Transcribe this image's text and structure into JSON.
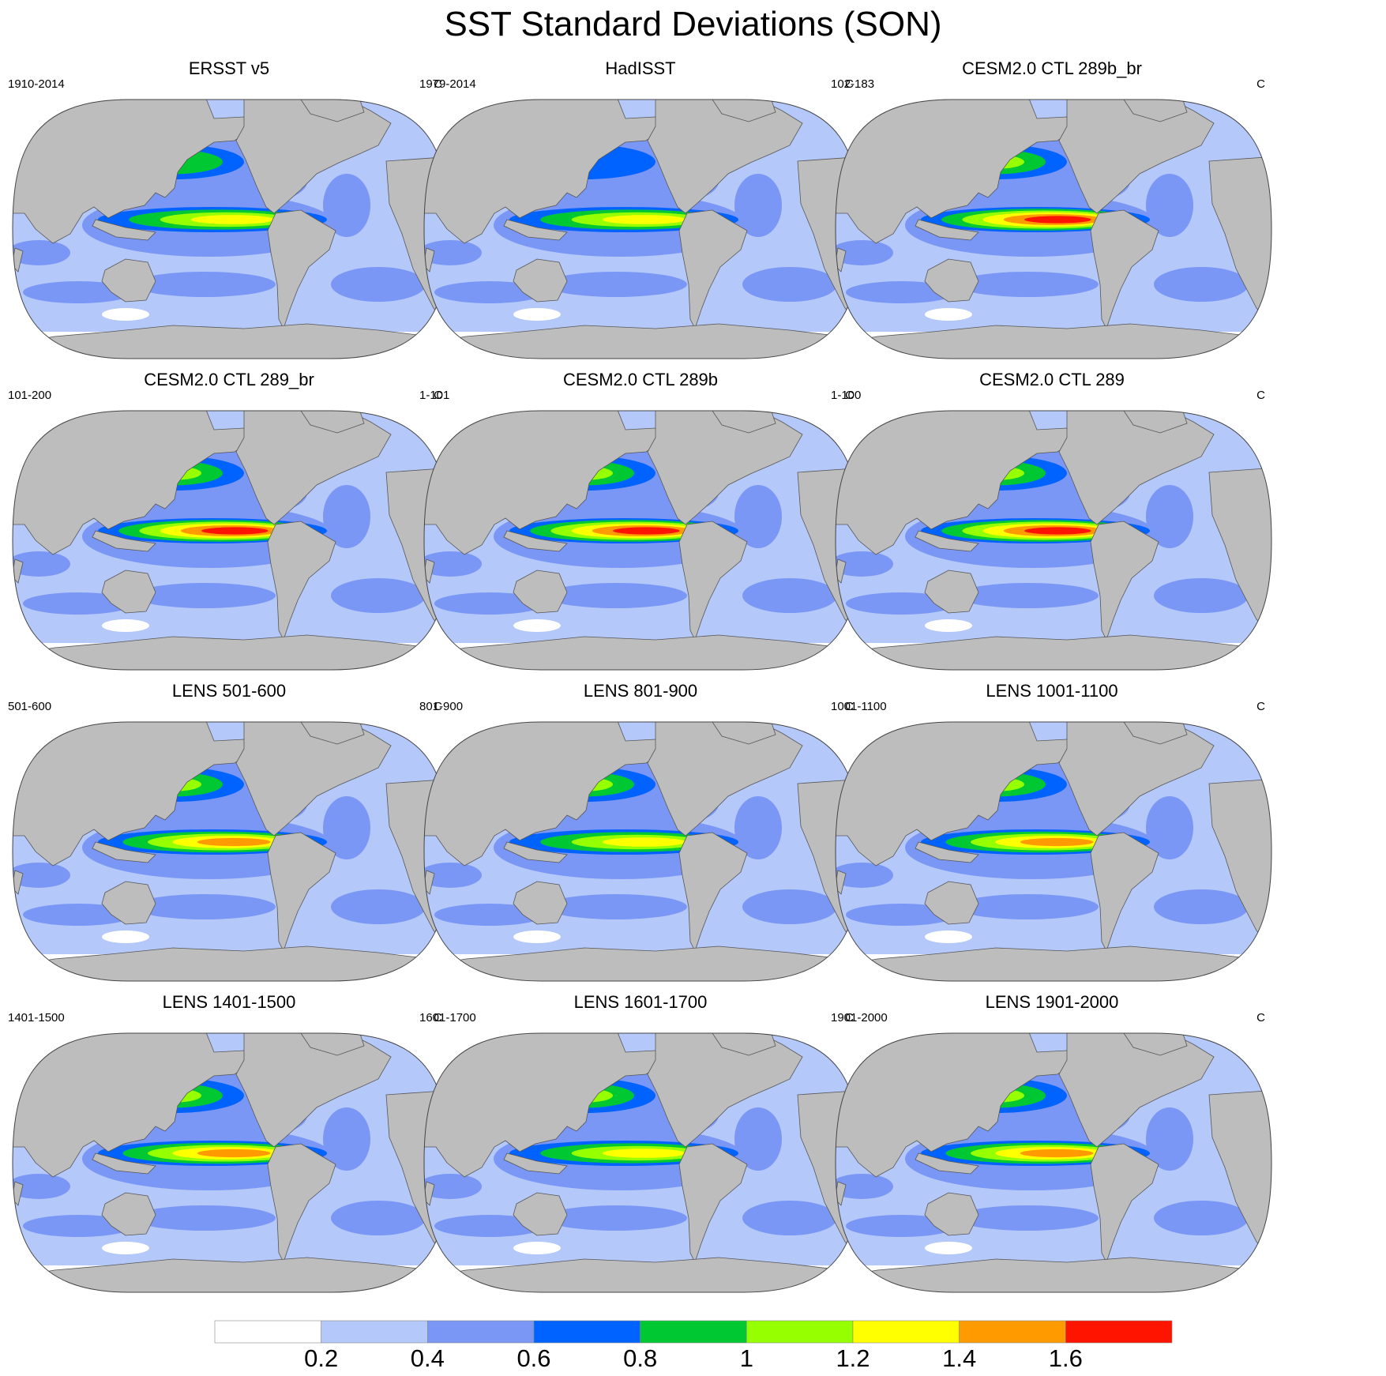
{
  "title": "SST Standard Deviations (SON)",
  "units": "C",
  "colors": {
    "land": "#bdbdbd",
    "outline": "#555555",
    "levels": [
      "#ffffff",
      "#b4c8fa",
      "#7b97f5",
      "#0063ff",
      "#00c832",
      "#96ff00",
      "#ffff00",
      "#ff9b00",
      "#ff1400"
    ]
  },
  "colorbar": {
    "tick_labels": [
      "0.2",
      "0.4",
      "0.6",
      "0.8",
      "1",
      "1.2",
      "1.4",
      "1.6"
    ]
  },
  "panels": [
    {
      "title": "ERSST v5",
      "years": "1910-2014",
      "units": "C",
      "nino_peak": 1.2,
      "north_pacific": 0.8
    },
    {
      "title": "HadISST",
      "years": "1979-2014",
      "units": "C",
      "nino_peak": 1.2,
      "north_pacific": 0.6
    },
    {
      "title": "CESM2.0 CTL 289b_br",
      "years": "102-183",
      "units": "C",
      "nino_peak": 1.6,
      "north_pacific": 1.0
    },
    {
      "title": "CESM2.0 CTL 289_br",
      "years": "101-200",
      "units": "C",
      "nino_peak": 1.6,
      "north_pacific": 1.0
    },
    {
      "title": "CESM2.0 CTL 289b",
      "years": "1-101",
      "units": "C",
      "nino_peak": 1.6,
      "north_pacific": 1.0
    },
    {
      "title": "CESM2.0 CTL 289",
      "years": "1-100",
      "units": "C",
      "nino_peak": 1.6,
      "north_pacific": 1.0
    },
    {
      "title": "LENS 501-600",
      "years": "501-600",
      "units": "C",
      "nino_peak": 1.4,
      "north_pacific": 1.0
    },
    {
      "title": "LENS 801-900",
      "years": "801-900",
      "units": "C",
      "nino_peak": 1.2,
      "north_pacific": 1.0
    },
    {
      "title": "LENS 1001-1100",
      "years": "1001-1100",
      "units": "C",
      "nino_peak": 1.4,
      "north_pacific": 1.0
    },
    {
      "title": "LENS 1401-1500",
      "years": "1401-1500",
      "units": "C",
      "nino_peak": 1.4,
      "north_pacific": 1.0
    },
    {
      "title": "LENS 1601-1700",
      "years": "1601-1700",
      "units": "C",
      "nino_peak": 1.2,
      "north_pacific": 1.0
    },
    {
      "title": "LENS 1901-2000",
      "years": "1901-2000",
      "units": "C",
      "nino_peak": 1.4,
      "north_pacific": 1.0
    }
  ]
}
